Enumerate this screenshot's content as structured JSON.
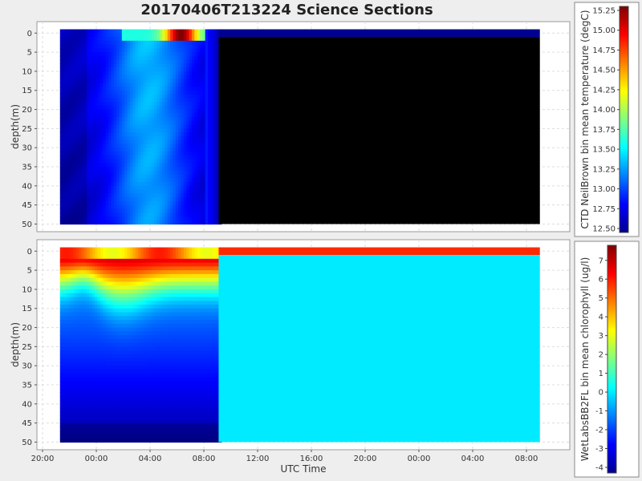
{
  "title": "20170406T213224 Science Sections",
  "chart_data": [
    {
      "type": "heatmap",
      "panel": "top",
      "ylabel": "depth(m)",
      "xlabel": "",
      "y_ticks": [
        "0",
        "5",
        "10",
        "15",
        "20",
        "25",
        "30",
        "35",
        "40",
        "45",
        "50"
      ],
      "ylim": [
        -3,
        52
      ],
      "data_start_hours": 1.3,
      "data_gap_start_hours": 13.1,
      "data_end_hours": 37,
      "colorbar": {
        "label": "CTD NeilBrown bin mean temperature (degC)",
        "min": 12.45,
        "max": 15.3,
        "ticks": [
          "12.50",
          "12.75",
          "13.00",
          "13.25",
          "13.50",
          "13.75",
          "14.00",
          "14.25",
          "14.50",
          "14.75",
          "15.00",
          "15.25"
        ],
        "tick_values": [
          12.5,
          12.75,
          13.0,
          13.25,
          13.5,
          13.75,
          14.0,
          14.25,
          14.5,
          14.75,
          15.0,
          15.25
        ]
      },
      "missing_color": "#000000",
      "surface_value_after_gap": 12.5
    },
    {
      "type": "heatmap",
      "panel": "bottom",
      "ylabel": "depth(m)",
      "xlabel": "UTC Time",
      "y_ticks": [
        "0",
        "5",
        "10",
        "15",
        "20",
        "25",
        "30",
        "35",
        "40",
        "45",
        "50"
      ],
      "ylim": [
        -3,
        52
      ],
      "x_ticks": [
        "20:00",
        "00:00",
        "04:00",
        "08:00",
        "12:00",
        "16:00",
        "20:00",
        "00:00",
        "04:00",
        "08:00"
      ],
      "x_tick_hours": [
        0,
        4,
        8,
        12,
        16,
        20,
        24,
        28,
        32,
        36
      ],
      "data_start_hours": 1.3,
      "data_gap_start_hours": 13.1,
      "data_end_hours": 37,
      "colorbar": {
        "label": "WetLabsBB2FL bin mean chlorophyll (ug/l)",
        "min": -4.3,
        "max": 7.8,
        "ticks": [
          "-4",
          "-3",
          "-2",
          "-1",
          "0",
          "1",
          "2",
          "3",
          "4",
          "5",
          "6",
          "7"
        ],
        "tick_values": [
          -4,
          -3,
          -2,
          -1,
          0,
          1,
          2,
          3,
          4,
          5,
          6,
          7
        ]
      },
      "fill_value_after_gap": 0.0,
      "surface_value_after_gap": 5.8
    }
  ]
}
